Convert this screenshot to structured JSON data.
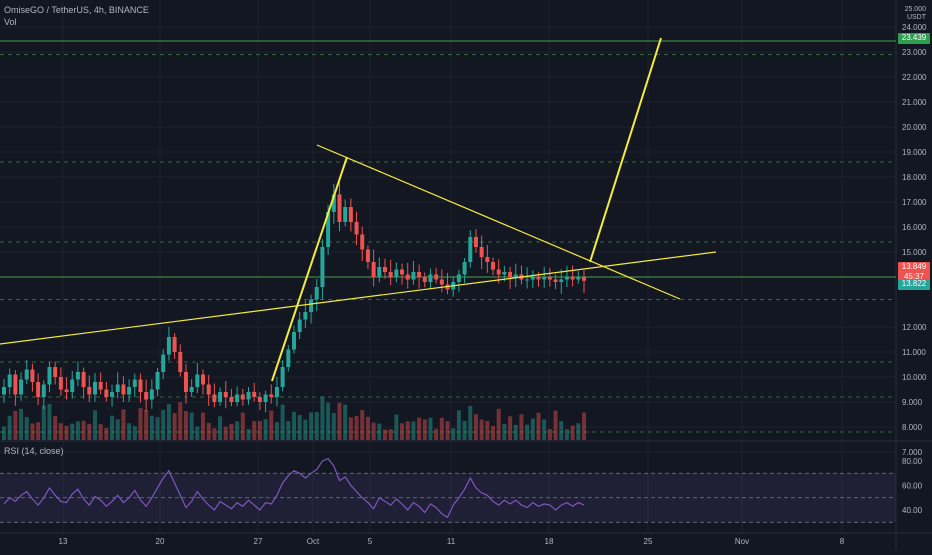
{
  "header": {
    "symbol_line": "OmiseGO / TetherUS, 4h, BINANCE",
    "volume_label": "Vol",
    "currency_top": "25.000",
    "currency": "USDT"
  },
  "price_axis": {
    "ticks": [
      "24.000",
      "23.000",
      "22.000",
      "21.000",
      "20.000",
      "19.000",
      "18.000",
      "17.000",
      "16.000",
      "15.000",
      "14.000",
      "12.000",
      "11.000",
      "10.000",
      "9.000",
      "8.000",
      "7.000"
    ]
  },
  "badges": {
    "target": "23.439",
    "last_price": "13.849",
    "countdown": "45:37",
    "support": "13.822"
  },
  "time_axis": {
    "labels": [
      "13",
      "20",
      "27",
      "Oct",
      "5",
      "11",
      "18",
      "25",
      "Nov",
      "8"
    ]
  },
  "rsi": {
    "label": "RSI (14, close)",
    "ticks": [
      "80.00",
      "60.00",
      "40.00"
    ]
  },
  "colors": {
    "background": "#131722",
    "up": "#26a69a",
    "down": "#ef5350",
    "drawing": "#f5eb3b",
    "rsi_line": "#7e57c2",
    "level_line": "#4caf50"
  },
  "chart_data": {
    "type": "candlestick",
    "interval": "4h",
    "ylim": [
      6.6,
      25.0
    ],
    "close_series": [
      9.6,
      10.1,
      9.3,
      9.9,
      10.3,
      9.8,
      9.2,
      9.7,
      10.4,
      10.0,
      9.5,
      9.4,
      9.9,
      10.2,
      9.6,
      9.3,
      9.8,
      9.5,
      9.2,
      9.4,
      9.7,
      9.3,
      9.6,
      9.9,
      9.4,
      9.1,
      9.5,
      10.2,
      10.9,
      11.6,
      11.0,
      10.2,
      9.4,
      9.6,
      10.1,
      9.7,
      9.3,
      9.0,
      9.4,
      9.2,
      9.0,
      9.3,
      9.1,
      9.4,
      9.2,
      9.0,
      9.3,
      9.2,
      9.6,
      10.4,
      11.1,
      11.8,
      12.3,
      12.6,
      13.1,
      13.6,
      15.2,
      16.6,
      17.3,
      16.2,
      16.8,
      16.2,
      15.7,
      15.1,
      14.6,
      14.0,
      14.4,
      14.2,
      14.0,
      14.3,
      14.1,
      13.9,
      14.2,
      14.0,
      13.8,
      14.1,
      13.9,
      13.7,
      13.5,
      13.8,
      14.1,
      14.6,
      15.6,
      15.2,
      14.8,
      14.6,
      14.3,
      14.1,
      14.2,
      14.0,
      14.1,
      13.9,
      13.9,
      14.0,
      13.9,
      14.0,
      13.9,
      13.8,
      13.9,
      14.0,
      13.9,
      14.0,
      13.85
    ],
    "horizontal_levels": [
      23.439,
      22.9,
      18.6,
      15.4,
      14.0,
      13.1,
      10.6,
      9.2,
      7.8
    ],
    "rsi": {
      "ylim": [
        30,
        85
      ],
      "values": [
        45,
        50,
        47,
        52,
        55,
        49,
        44,
        50,
        58,
        52,
        47,
        46,
        53,
        57,
        49,
        44,
        51,
        48,
        43,
        47,
        52,
        46,
        50,
        56,
        48,
        43,
        50,
        58,
        66,
        72,
        62,
        52,
        42,
        47,
        55,
        49,
        44,
        40,
        47,
        44,
        41,
        46,
        43,
        48,
        44,
        40,
        46,
        45,
        52,
        62,
        68,
        72,
        70,
        66,
        70,
        73,
        80,
        82,
        76,
        64,
        67,
        60,
        55,
        50,
        46,
        41,
        50,
        47,
        44,
        49,
        45,
        40,
        46,
        43,
        38,
        45,
        42,
        37,
        34,
        44,
        50,
        57,
        66,
        58,
        54,
        52,
        47,
        44,
        48,
        45,
        48,
        44,
        42,
        46,
        43,
        45,
        44,
        40,
        44,
        46,
        43,
        46,
        44
      ]
    }
  }
}
